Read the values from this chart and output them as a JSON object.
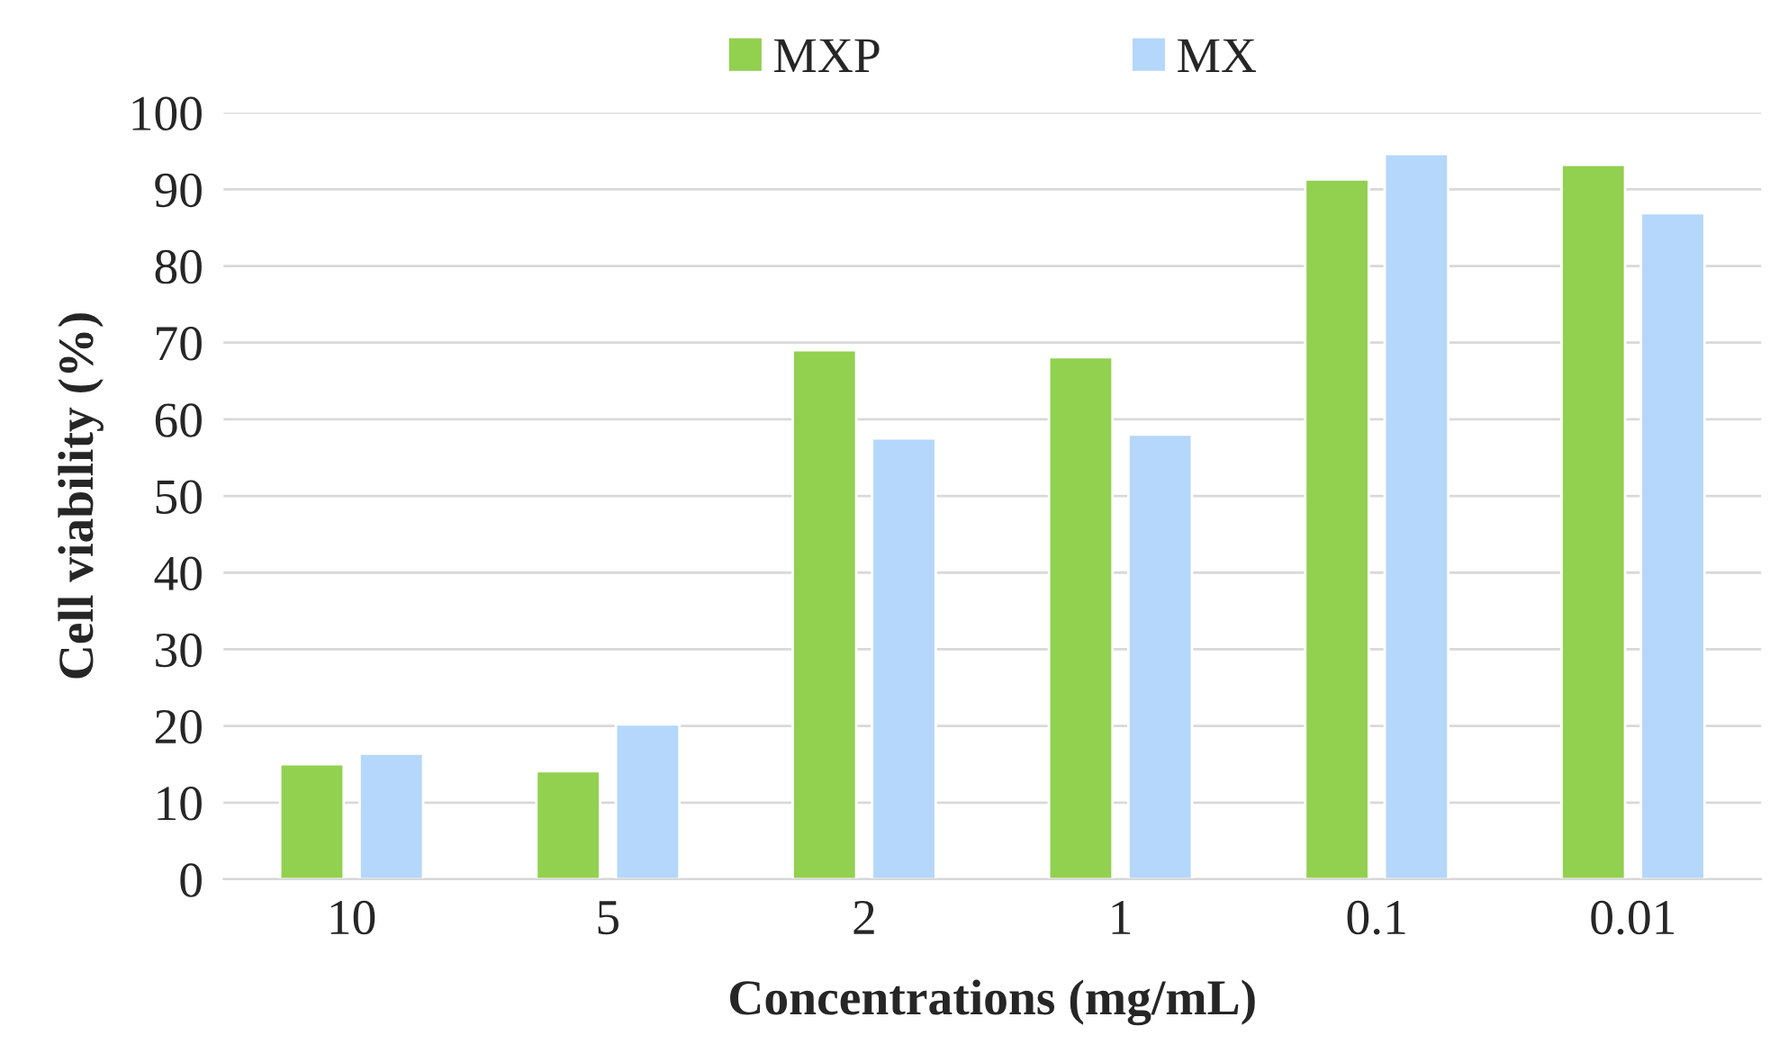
{
  "chart_data": {
    "type": "bar",
    "xlabel": "Concentrations (mg/mL)",
    "ylabel": "Cell viability (%)",
    "categories": [
      "10",
      "5",
      "2",
      "1",
      "0.1",
      "0.01"
    ],
    "series": [
      {
        "name": "MXP",
        "color": "#92d050",
        "values": [
          15.0,
          14.1,
          69.0,
          68.1,
          91.3,
          93.2
        ]
      },
      {
        "name": "MX",
        "color": "#b4d7fb",
        "values": [
          16.4,
          20.2,
          57.5,
          58.0,
          94.6,
          86.9
        ]
      }
    ],
    "ylim": [
      0,
      100
    ],
    "yticks": [
      0,
      10,
      20,
      30,
      40,
      50,
      60,
      70,
      80,
      90,
      100
    ],
    "grid": "y",
    "legend": "top"
  }
}
